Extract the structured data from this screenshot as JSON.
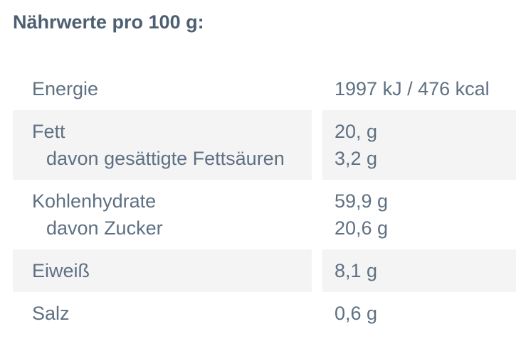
{
  "page": {
    "title": "Nährwerte pro 100 g:"
  },
  "colors": {
    "title_text": "#4d5f72",
    "body_text": "#5e7082",
    "shaded_row_background": "#f4f4f5",
    "page_background": "#ffffff"
  },
  "table": {
    "columns": [
      "nutrient",
      "amount"
    ],
    "rows": [
      {
        "label": "Energie",
        "value": "1997 kJ / 476 kcal"
      },
      {
        "label": "Fett",
        "sublabel": "davon gesättigte Fettsäuren",
        "value": "20, g",
        "subvalue": "3,2 g"
      },
      {
        "label": "Kohlenhydrate",
        "sublabel": "davon Zucker",
        "value": "59,9 g",
        "subvalue": "20,6 g"
      },
      {
        "label": "Eiweiß",
        "value": "8,1 g"
      },
      {
        "label": "Salz",
        "value": "0,6 g"
      }
    ]
  }
}
